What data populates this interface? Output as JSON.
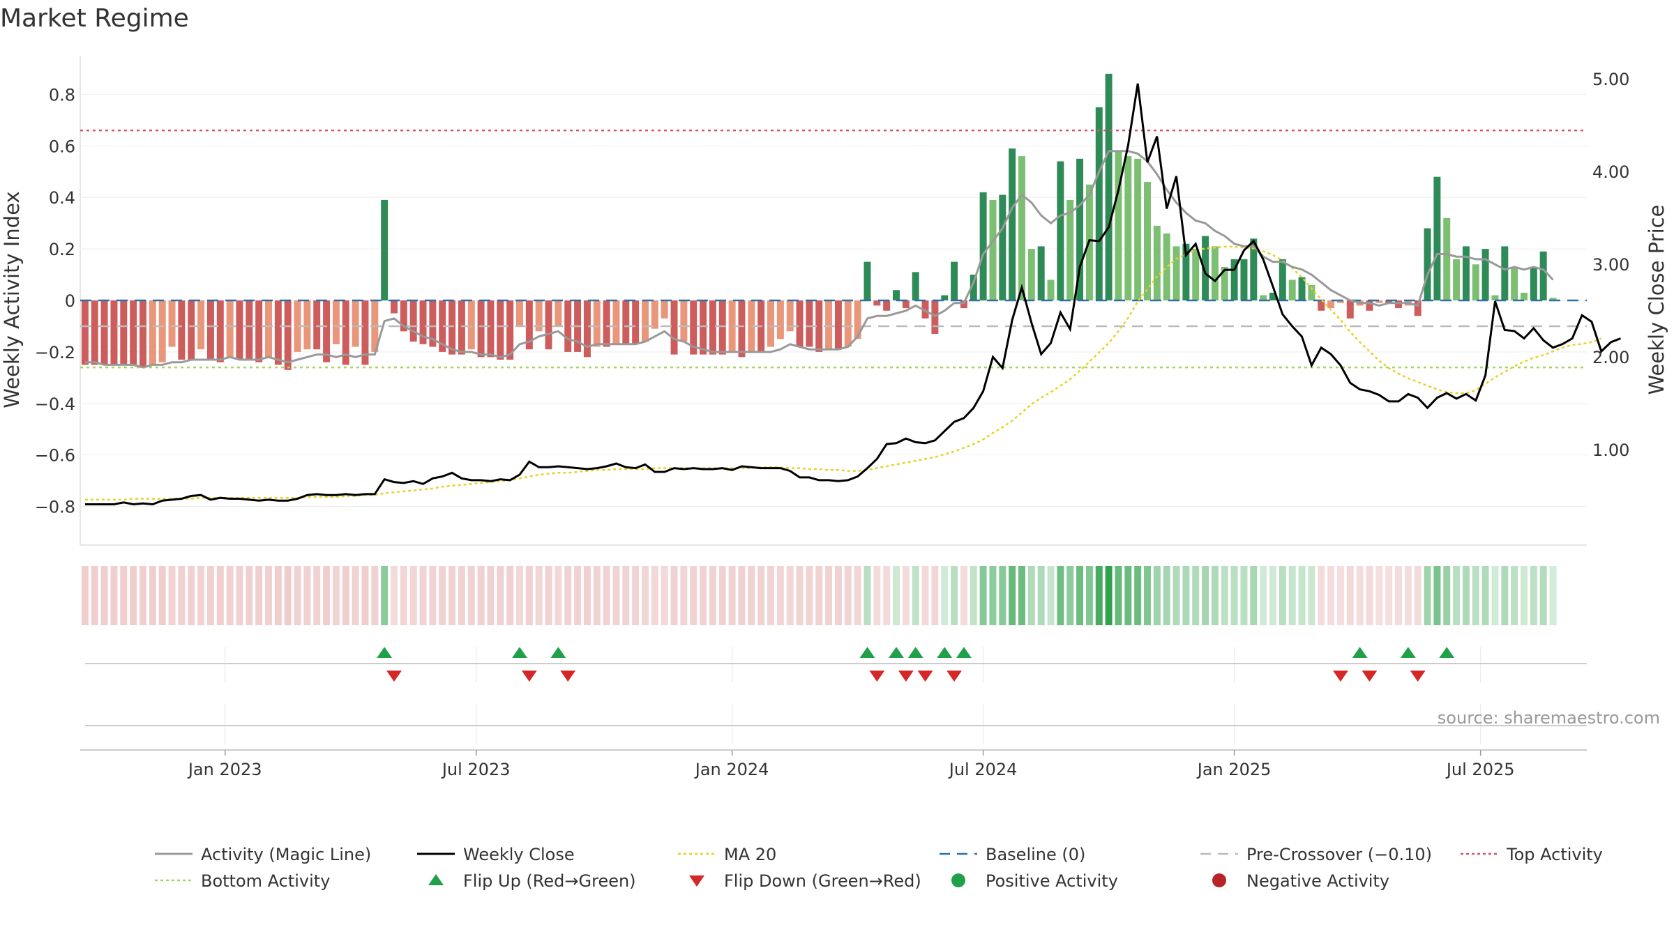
{
  "title": "Market Regime",
  "source": "source: sharemaestro.com",
  "chart_data": {
    "type": "bar",
    "ylabel_left": "Weekly Activity Index",
    "ylabel_right": "Weekly Close Price",
    "ylim_left": [
      -0.95,
      0.95
    ],
    "ylim_right": [
      -0.03,
      5.25
    ],
    "left_ticks": [
      "0.8",
      "0.6",
      "0.4",
      "0.2",
      "0",
      "−0.2",
      "−0.4",
      "−0.6",
      "−0.8"
    ],
    "left_tick_values": [
      0.8,
      0.6,
      0.4,
      0.2,
      0,
      -0.2,
      -0.4,
      -0.6,
      -0.8
    ],
    "right_ticks": [
      "5.00",
      "4.00",
      "3.00",
      "2.00",
      "1.00"
    ],
    "right_tick_values": [
      5,
      4,
      3,
      2,
      1
    ],
    "x_ticks": [
      "Jan 2023",
      "Jul 2023",
      "Jan 2024",
      "Jul 2024",
      "Jan 2025",
      "Jul 2025"
    ],
    "x_tick_weeks": [
      15,
      41,
      67.5,
      93.5,
      119.5,
      145
    ],
    "x_range_weeks": [
      0,
      156
    ],
    "lines": {
      "baseline": 0,
      "pre_crossover": -0.1,
      "top_activity": 0.66,
      "bottom_activity": -0.26
    },
    "activity": [
      -0.25,
      -0.25,
      -0.25,
      -0.25,
      -0.25,
      -0.25,
      -0.26,
      -0.25,
      -0.24,
      -0.18,
      -0.23,
      -0.23,
      -0.19,
      -0.23,
      -0.24,
      -0.22,
      -0.23,
      -0.23,
      -0.24,
      -0.22,
      -0.25,
      -0.27,
      -0.2,
      -0.19,
      -0.19,
      -0.24,
      -0.17,
      -0.25,
      -0.18,
      -0.25,
      -0.2,
      0.39,
      -0.05,
      -0.12,
      -0.16,
      -0.17,
      -0.18,
      -0.2,
      -0.21,
      -0.21,
      -0.19,
      -0.22,
      -0.22,
      -0.23,
      -0.23,
      -0.1,
      -0.19,
      -0.12,
      -0.19,
      -0.1,
      -0.2,
      -0.2,
      -0.22,
      -0.18,
      -0.18,
      -0.17,
      -0.17,
      -0.17,
      -0.16,
      -0.11,
      -0.07,
      -0.21,
      -0.16,
      -0.21,
      -0.21,
      -0.21,
      -0.21,
      -0.2,
      -0.22,
      -0.2,
      -0.2,
      -0.18,
      -0.15,
      -0.12,
      -0.18,
      -0.18,
      -0.2,
      -0.19,
      -0.19,
      -0.18,
      -0.15,
      0.15,
      -0.02,
      -0.04,
      0.04,
      -0.03,
      0.11,
      -0.07,
      -0.13,
      0.02,
      0.15,
      -0.03,
      0.1,
      0.42,
      0.39,
      0.41,
      0.59,
      0.56,
      0.2,
      0.21,
      0.08,
      0.54,
      0.39,
      0.55,
      0.45,
      0.75,
      0.88,
      0.58,
      0.56,
      0.55,
      0.46,
      0.29,
      0.26,
      0.21,
      0.22,
      0.2,
      0.25,
      0.21,
      0.13,
      0.16,
      0.16,
      0.24,
      0.02,
      0.03,
      0.16,
      0.08,
      0.09,
      0.06,
      -0.04,
      -0.03,
      -0.01,
      -0.07,
      -0.02,
      -0.04,
      -0.01,
      -0.01,
      -0.03,
      -0.02,
      -0.06,
      0.28,
      0.48,
      0.32,
      0.16,
      0.21,
      0.14,
      0.2,
      0.02,
      0.21,
      0.13,
      0.03,
      0.13,
      0.19,
      0.01
    ],
    "activity_line": [
      -0.24,
      -0.24,
      -0.25,
      -0.25,
      -0.25,
      -0.25,
      -0.26,
      -0.25,
      -0.25,
      -0.24,
      -0.24,
      -0.23,
      -0.23,
      -0.23,
      -0.23,
      -0.22,
      -0.23,
      -0.23,
      -0.23,
      -0.22,
      -0.23,
      -0.24,
      -0.23,
      -0.22,
      -0.21,
      -0.21,
      -0.22,
      -0.21,
      -0.22,
      -0.21,
      -0.21,
      -0.08,
      -0.07,
      -0.1,
      -0.12,
      -0.14,
      -0.15,
      -0.17,
      -0.19,
      -0.2,
      -0.2,
      -0.21,
      -0.21,
      -0.22,
      -0.21,
      -0.17,
      -0.16,
      -0.14,
      -0.13,
      -0.12,
      -0.15,
      -0.16,
      -0.18,
      -0.17,
      -0.17,
      -0.17,
      -0.17,
      -0.17,
      -0.16,
      -0.14,
      -0.12,
      -0.15,
      -0.16,
      -0.18,
      -0.19,
      -0.2,
      -0.2,
      -0.2,
      -0.2,
      -0.2,
      -0.2,
      -0.2,
      -0.19,
      -0.17,
      -0.18,
      -0.19,
      -0.19,
      -0.19,
      -0.19,
      -0.18,
      -0.14,
      -0.07,
      -0.06,
      -0.06,
      -0.05,
      -0.04,
      -0.02,
      -0.04,
      -0.06,
      -0.04,
      -0.01,
      -0.01,
      0.07,
      0.18,
      0.23,
      0.28,
      0.36,
      0.41,
      0.38,
      0.33,
      0.3,
      0.33,
      0.34,
      0.37,
      0.41,
      0.5,
      0.58,
      0.58,
      0.58,
      0.57,
      0.54,
      0.49,
      0.43,
      0.38,
      0.34,
      0.31,
      0.3,
      0.27,
      0.25,
      0.22,
      0.21,
      0.21,
      0.17,
      0.15,
      0.15,
      0.13,
      0.12,
      0.1,
      0.07,
      0.04,
      0.02,
      0.0,
      -0.01,
      -0.01,
      -0.02,
      -0.01,
      -0.01,
      -0.01,
      -0.02,
      0.1,
      0.18,
      0.18,
      0.17,
      0.17,
      0.16,
      0.16,
      0.14,
      0.12,
      0.13,
      0.12,
      0.13,
      0.12,
      0.08
    ],
    "close": [
      0.41,
      0.41,
      0.41,
      0.41,
      0.43,
      0.41,
      0.42,
      0.41,
      0.45,
      0.46,
      0.47,
      0.5,
      0.51,
      0.46,
      0.48,
      0.47,
      0.47,
      0.46,
      0.45,
      0.46,
      0.45,
      0.45,
      0.47,
      0.51,
      0.52,
      0.51,
      0.51,
      0.52,
      0.51,
      0.52,
      0.52,
      0.68,
      0.65,
      0.64,
      0.66,
      0.63,
      0.69,
      0.71,
      0.75,
      0.69,
      0.67,
      0.67,
      0.66,
      0.68,
      0.67,
      0.73,
      0.87,
      0.81,
      0.81,
      0.82,
      0.81,
      0.8,
      0.79,
      0.8,
      0.82,
      0.85,
      0.81,
      0.8,
      0.84,
      0.76,
      0.76,
      0.8,
      0.79,
      0.8,
      0.79,
      0.79,
      0.8,
      0.78,
      0.82,
      0.81,
      0.8,
      0.8,
      0.8,
      0.77,
      0.7,
      0.7,
      0.67,
      0.67,
      0.66,
      0.67,
      0.71,
      0.8,
      0.9,
      1.06,
      1.07,
      1.12,
      1.08,
      1.07,
      1.1,
      1.2,
      1.3,
      1.34,
      1.45,
      1.63,
      2.0,
      1.88,
      2.4,
      2.75,
      2.37,
      2.03,
      2.15,
      2.48,
      2.3,
      2.97,
      3.26,
      3.25,
      3.4,
      3.8,
      4.28,
      4.95,
      4.1,
      4.38,
      3.6,
      3.95,
      3.1,
      3.22,
      2.9,
      2.82,
      2.94,
      2.94,
      3.15,
      3.25,
      3.05,
      2.76,
      2.46,
      2.33,
      2.22,
      1.91,
      2.1,
      2.03,
      1.91,
      1.72,
      1.65,
      1.63,
      1.59,
      1.52,
      1.52,
      1.6,
      1.56,
      1.45,
      1.56,
      1.61,
      1.55,
      1.6,
      1.53,
      1.8,
      2.6,
      2.29,
      2.28,
      2.2,
      2.31,
      2.18,
      2.1,
      2.14,
      2.2,
      2.45,
      2.38,
      2.06,
      2.16,
      2.2
    ],
    "ma20": [
      0.46,
      0.46,
      0.46,
      0.46,
      0.46,
      0.47,
      0.47,
      0.47,
      0.47,
      0.47,
      0.47,
      0.47,
      0.48,
      0.48,
      0.48,
      0.48,
      0.48,
      0.48,
      0.48,
      0.48,
      0.48,
      0.48,
      0.48,
      0.49,
      0.49,
      0.49,
      0.49,
      0.5,
      0.5,
      0.51,
      0.51,
      0.53,
      0.54,
      0.55,
      0.56,
      0.57,
      0.58,
      0.6,
      0.61,
      0.62,
      0.63,
      0.64,
      0.65,
      0.66,
      0.67,
      0.69,
      0.71,
      0.73,
      0.74,
      0.75,
      0.75,
      0.76,
      0.77,
      0.78,
      0.78,
      0.79,
      0.79,
      0.79,
      0.79,
      0.8,
      0.8,
      0.8,
      0.8,
      0.8,
      0.8,
      0.8,
      0.8,
      0.8,
      0.8,
      0.8,
      0.81,
      0.81,
      0.81,
      0.8,
      0.8,
      0.79,
      0.79,
      0.78,
      0.78,
      0.77,
      0.77,
      0.78,
      0.8,
      0.82,
      0.84,
      0.86,
      0.88,
      0.9,
      0.92,
      0.95,
      0.98,
      1.02,
      1.06,
      1.11,
      1.18,
      1.24,
      1.31,
      1.4,
      1.49,
      1.56,
      1.62,
      1.69,
      1.76,
      1.85,
      1.95,
      2.05,
      2.15,
      2.28,
      2.42,
      2.6,
      2.73,
      2.87,
      2.97,
      3.06,
      3.11,
      3.15,
      3.17,
      3.18,
      3.19,
      3.19,
      3.18,
      3.17,
      3.14,
      3.1,
      3.04,
      2.96,
      2.86,
      2.74,
      2.62,
      2.51,
      2.4,
      2.27,
      2.16,
      2.06,
      1.96,
      1.88,
      1.82,
      1.77,
      1.73,
      1.69,
      1.65,
      1.62,
      1.61,
      1.61,
      1.64,
      1.71,
      1.78,
      1.84,
      1.9,
      1.95,
      1.99,
      2.02,
      2.06,
      2.1,
      2.13,
      2.14,
      2.16,
      2.2
    ],
    "flip_up_weeks": [
      31,
      45,
      49,
      81,
      84,
      86,
      89,
      91,
      132,
      137,
      141
    ],
    "flip_down_weeks": [
      32,
      46,
      50,
      82,
      85,
      87,
      90,
      130,
      133,
      138
    ],
    "legend": [
      {
        "label": "Activity (Magic Line)",
        "kind": "line",
        "color": "#999999"
      },
      {
        "label": "Weekly Close",
        "kind": "line",
        "color": "#000000"
      },
      {
        "label": "MA 20",
        "kind": "dotted",
        "color": "#e6d227"
      },
      {
        "label": "Baseline (0)",
        "kind": "dashed",
        "color": "#2e6fa5"
      },
      {
        "label": "Pre-Crossover (−0.10)",
        "kind": "dashed",
        "color": "#bbbbbb"
      },
      {
        "label": "Top Activity",
        "kind": "dotted",
        "color": "#d6546a"
      },
      {
        "label": "Bottom Activity",
        "kind": "dotted",
        "color": "#a3d65c"
      },
      {
        "label": "Flip Up (Red→Green)",
        "kind": "triangle-up",
        "color": "#21a04a"
      },
      {
        "label": "Flip Down (Green→Red)",
        "kind": "triangle-down",
        "color": "#d62728"
      },
      {
        "label": "Positive Activity",
        "kind": "dot",
        "color": "#21a04a"
      },
      {
        "label": "Negative Activity",
        "kind": "dot",
        "color": "#b82327"
      }
    ]
  },
  "colors": {
    "pos_strong": "#2e8b57",
    "pos_light": "#7dbf72",
    "neg_strong": "#cd5c5c",
    "neg_light": "#e9967a",
    "activity_line": "#999999",
    "close_line": "#000000",
    "ma20": "#e6d227",
    "baseline": "#2e6fa5",
    "pre_crossover": "#bbbbbb",
    "top": "#d6546a",
    "bottom": "#a3d65c",
    "grid": "#eeeeee"
  }
}
